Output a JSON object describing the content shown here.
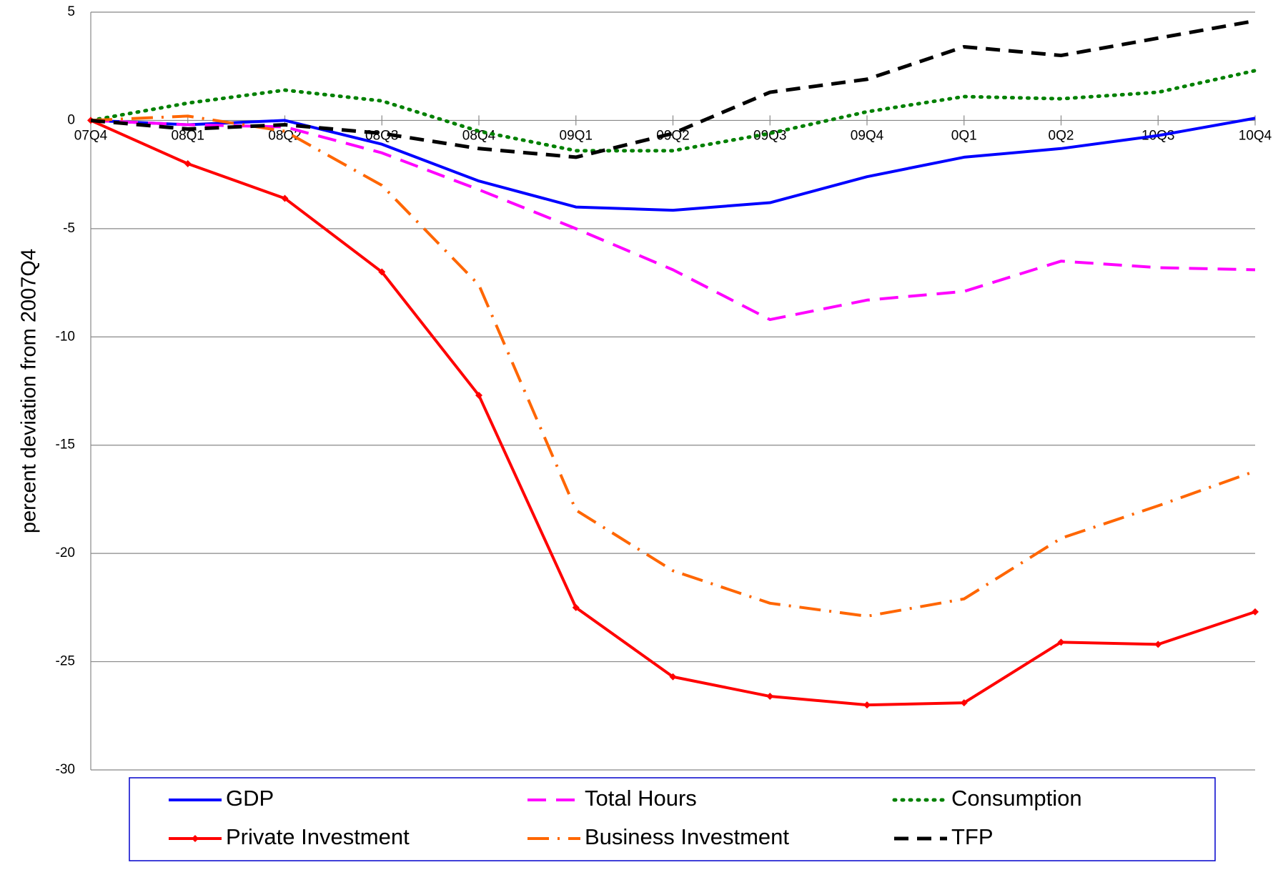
{
  "chart_data": {
    "type": "line",
    "y_axis_label": "percent deviation from 2007Q4",
    "categories": [
      "07Q4",
      "08Q1",
      "08Q2",
      "08Q3",
      "08Q4",
      "09Q1",
      "09Q2",
      "09Q3",
      "09Q4",
      "0Q1",
      "0Q2",
      "10Q3",
      "10Q4"
    ],
    "series": [
      {
        "name": "GDP",
        "color": "#0000ff",
        "values": [
          0,
          -0.2,
          0,
          -1.1,
          -2.8,
          -4.0,
          -4.15,
          -3.8,
          -2.6,
          -1.7,
          -1.3,
          -0.7,
          0.1
        ]
      },
      {
        "name": "Total Hours",
        "color": "#ff00ff",
        "values": [
          0,
          -0.2,
          -0.3,
          -1.5,
          -3.2,
          -5.0,
          -6.9,
          -9.2,
          -8.3,
          -7.9,
          -6.5,
          -6.8,
          -6.9
        ]
      },
      {
        "name": "Consumption",
        "color": "#008000",
        "values": [
          0,
          0.8,
          1.4,
          0.9,
          -0.5,
          -1.4,
          -1.4,
          -0.6,
          0.4,
          1.1,
          1.0,
          1.3,
          2.3
        ]
      },
      {
        "name": "Private Investment",
        "color": "#ff0000",
        "values": [
          0,
          -2.0,
          -3.6,
          -7.0,
          -12.7,
          -22.5,
          -25.7,
          -26.6,
          -27.0,
          -26.9,
          -24.1,
          -24.2,
          -22.7
        ]
      },
      {
        "name": "Business Investment",
        "color": "#ff6600",
        "values": [
          0,
          0.2,
          -0.5,
          -3.0,
          -7.6,
          -18.0,
          -20.8,
          -22.3,
          -22.9,
          -22.1,
          -19.3,
          -17.8,
          -16.2
        ]
      },
      {
        "name": "TFP",
        "color": "#000000",
        "values": [
          0,
          -0.4,
          -0.2,
          -0.6,
          -1.3,
          -1.7,
          -0.6,
          1.3,
          1.9,
          3.4,
          3.0,
          3.8,
          4.6
        ]
      }
    ],
    "ylim": [
      -30,
      5
    ],
    "yticks": [
      5,
      0,
      -5,
      -10,
      -15,
      -20,
      -25,
      -30
    ],
    "grid": true
  }
}
